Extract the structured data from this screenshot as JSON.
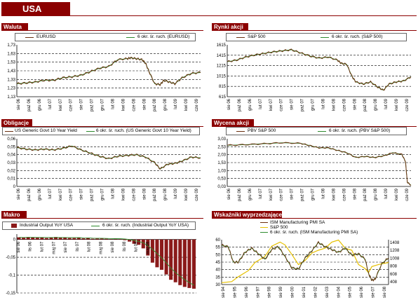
{
  "page": {
    "title": "USA"
  },
  "chart_data": [
    {
      "id": "eur",
      "panel_title": "Waluta",
      "type": "line",
      "series": [
        {
          "name": "EURUSD",
          "color": "#6b3010"
        },
        {
          "name": "6 okr. śr. ruch. (EURUSD)",
          "color": "#2e8b2e"
        }
      ],
      "y_ticks": [
        "1,73",
        "1,63",
        "1,53",
        "1,43",
        "1,33",
        "1,23",
        "1,13"
      ],
      "ylim": [
        1.13,
        1.73
      ],
      "x_ticks": [
        "sie 06",
        "paź 06",
        "gru 06",
        "lut 07",
        "kwi 07",
        "cze 07",
        "sie 07",
        "paź 07",
        "gru 07",
        "lut 08",
        "kwi 08",
        "cze 08",
        "sie 08",
        "paź 08",
        "gru 08",
        "lut 09",
        "kwi 09",
        "cze 09"
      ],
      "points": [
        [
          0,
          1.28
        ],
        [
          0.05,
          1.29
        ],
        [
          0.1,
          1.3
        ],
        [
          0.15,
          1.32
        ],
        [
          0.2,
          1.32
        ],
        [
          0.25,
          1.35
        ],
        [
          0.3,
          1.36
        ],
        [
          0.35,
          1.38
        ],
        [
          0.4,
          1.42
        ],
        [
          0.45,
          1.46
        ],
        [
          0.5,
          1.48
        ],
        [
          0.55,
          1.56
        ],
        [
          0.6,
          1.57
        ],
        [
          0.62,
          1.58
        ],
        [
          0.65,
          1.57
        ],
        [
          0.68,
          1.56
        ],
        [
          0.7,
          1.52
        ],
        [
          0.72,
          1.42
        ],
        [
          0.75,
          1.28
        ],
        [
          0.78,
          1.27
        ],
        [
          0.8,
          1.32
        ],
        [
          0.83,
          1.3
        ],
        [
          0.86,
          1.28
        ],
        [
          0.9,
          1.35
        ],
        [
          0.95,
          1.4
        ],
        [
          1,
          1.41
        ]
      ]
    },
    {
      "id": "sp",
      "panel_title": "Rynki akcji",
      "type": "line",
      "series": [
        {
          "name": "S&P 500",
          "color": "#6b3010"
        },
        {
          "name": "6 okr. śr. ruch. (S&P 500)",
          "color": "#2e8b2e"
        }
      ],
      "y_ticks": [
        "1615",
        "1415",
        "1215",
        "1015",
        "815",
        "615"
      ],
      "ylim": [
        615,
        1615
      ],
      "x_ticks": [
        "sie 06",
        "paź 06",
        "gru 06",
        "lut 07",
        "kwi 07",
        "cze 07",
        "sie 07",
        "paź 07",
        "gru 07",
        "lut 08",
        "kwi 08",
        "cze 08",
        "sie 08",
        "paź 08",
        "gru 08",
        "lut 09",
        "kwi 09",
        "cze 09"
      ],
      "points": [
        [
          0,
          1290
        ],
        [
          0.05,
          1320
        ],
        [
          0.1,
          1380
        ],
        [
          0.15,
          1420
        ],
        [
          0.2,
          1450
        ],
        [
          0.25,
          1480
        ],
        [
          0.3,
          1500
        ],
        [
          0.35,
          1520
        ],
        [
          0.4,
          1460
        ],
        [
          0.45,
          1400
        ],
        [
          0.5,
          1360
        ],
        [
          0.55,
          1380
        ],
        [
          0.6,
          1320
        ],
        [
          0.62,
          1260
        ],
        [
          0.65,
          1240
        ],
        [
          0.68,
          1000
        ],
        [
          0.7,
          900
        ],
        [
          0.74,
          860
        ],
        [
          0.78,
          900
        ],
        [
          0.82,
          800
        ],
        [
          0.85,
          740
        ],
        [
          0.88,
          860
        ],
        [
          0.92,
          900
        ],
        [
          0.96,
          920
        ],
        [
          1,
          1000
        ]
      ]
    },
    {
      "id": "bond",
      "panel_title": "Obligacje",
      "type": "line",
      "series": [
        {
          "name": "US Generic Govt 10 Year Yield",
          "color": "#6b3010"
        },
        {
          "name": "6 okr. śr. ruch. (US Generic Govt 10 Year Yield)",
          "color": "#2e8b2e"
        }
      ],
      "y_ticks": [
        "0,06",
        "0,05",
        "0,04",
        "0,03",
        "0,02",
        "0,01",
        "0"
      ],
      "ylim": [
        0,
        0.06
      ],
      "x_ticks": [
        "sie 06",
        "paź 06",
        "gru 06",
        "lut 07",
        "kwi 07",
        "cze 07",
        "sie 07",
        "paź 07",
        "gru 07",
        "lut 08",
        "kwi 08",
        "cze 08",
        "sie 08",
        "paź 08",
        "gru 08",
        "lut 09",
        "kwi 09",
        "cze 09"
      ],
      "points": [
        [
          0,
          0.049
        ],
        [
          0.05,
          0.047
        ],
        [
          0.1,
          0.046
        ],
        [
          0.15,
          0.047
        ],
        [
          0.2,
          0.046
        ],
        [
          0.25,
          0.048
        ],
        [
          0.3,
          0.051
        ],
        [
          0.35,
          0.046
        ],
        [
          0.4,
          0.042
        ],
        [
          0.45,
          0.038
        ],
        [
          0.5,
          0.035
        ],
        [
          0.55,
          0.038
        ],
        [
          0.6,
          0.039
        ],
        [
          0.65,
          0.04
        ],
        [
          0.7,
          0.037
        ],
        [
          0.75,
          0.03
        ],
        [
          0.78,
          0.022
        ],
        [
          0.82,
          0.028
        ],
        [
          0.86,
          0.029
        ],
        [
          0.9,
          0.032
        ],
        [
          0.95,
          0.037
        ],
        [
          1,
          0.036
        ]
      ]
    },
    {
      "id": "pbv",
      "panel_title": "Wycena akcji",
      "type": "line",
      "series": [
        {
          "name": "PBV S&P 500",
          "color": "#6b3010"
        },
        {
          "name": "6 okr. śr. ruch. (PBV S&P 500)",
          "color": "#2e8b2e"
        }
      ],
      "y_ticks": [
        "3,03",
        "2,53",
        "2,03",
        "1,53",
        "1,03",
        "0,53",
        "0,03"
      ],
      "ylim": [
        0.03,
        3.03
      ],
      "x_ticks": [
        "sie 06",
        "paź 06",
        "gru 06",
        "lut 07",
        "kwi 07",
        "cze 07",
        "sie 07",
        "paź 07",
        "gru 07",
        "lut 08",
        "kwi 08",
        "cze 08",
        "sie 08",
        "paź 08",
        "gru 08",
        "lut 09",
        "kwi 09",
        "cze 09"
      ],
      "points": [
        [
          0,
          2.62
        ],
        [
          0.1,
          2.66
        ],
        [
          0.2,
          2.72
        ],
        [
          0.3,
          2.78
        ],
        [
          0.4,
          2.74
        ],
        [
          0.45,
          2.6
        ],
        [
          0.5,
          2.46
        ],
        [
          0.55,
          2.46
        ],
        [
          0.6,
          2.3
        ],
        [
          0.65,
          2.15
        ],
        [
          0.7,
          1.85
        ],
        [
          0.75,
          1.92
        ],
        [
          0.8,
          1.85
        ],
        [
          0.85,
          1.95
        ],
        [
          0.9,
          2.15
        ],
        [
          0.95,
          2.05
        ],
        [
          0.97,
          1.6
        ],
        [
          0.98,
          0.3
        ],
        [
          1,
          0.1
        ]
      ]
    },
    {
      "id": "macro",
      "panel_title": "Makro",
      "type": "bar",
      "series": [
        {
          "name": "Industrial Output YoY USA",
          "color": "#8b1a1a"
        },
        {
          "name": "6 okr. śr. ruch. (Industrial Output YoY USA)",
          "color": "#2e8b2e"
        }
      ],
      "y_ticks": [
        "0",
        "-0,05",
        "-0,1",
        "-0,15"
      ],
      "ylim": [
        -0.15,
        0.015
      ],
      "x_ticks": [
        "sie 06",
        "lis 06",
        "lut 07",
        "maj 07",
        "sie 07",
        "lis 07",
        "lut 08",
        "maj 08",
        "sie 08",
        "lis 08",
        "lut 09",
        "maj 09"
      ],
      "values": [
        0.006,
        0.005,
        0.007,
        0.006,
        0.005,
        0.006,
        0.004,
        0.006,
        0.007,
        0.005,
        0.006,
        0.004,
        0.004,
        0.005,
        0.003,
        0.004,
        0.002,
        0.003,
        0.003,
        0.002,
        0.001,
        0.002,
        0.001,
        -0.002,
        -0.006,
        -0.012,
        -0.015,
        -0.025,
        -0.045,
        -0.065,
        -0.078,
        -0.085,
        -0.098,
        -0.113,
        -0.12,
        -0.128,
        -0.133,
        -0.136,
        -0.138
      ]
    },
    {
      "id": "lead",
      "panel_title": "Wskaźniki wyprzedzające",
      "type": "line",
      "series": [
        {
          "name": "ISM Manufacturing PMI SA",
          "color": "#6b3010"
        },
        {
          "name": "S&P 500",
          "color": "#e6c000"
        },
        {
          "name": "6 okr. śr. ruch. (ISM Manufacturing PMI SA)",
          "color": "#2e8b2e"
        }
      ],
      "y_ticks": [
        "60",
        "55",
        "50",
        "45",
        "40",
        "35",
        "30"
      ],
      "y2_ticks": [
        "1408",
        "1208",
        "1008",
        "808",
        "608",
        "408"
      ],
      "ylim": [
        30,
        62
      ],
      "y2lim": [
        408,
        1508
      ],
      "x_ticks": [
        "sie 94",
        "sie 95",
        "sie 96",
        "sie 97",
        "sie 98",
        "sie 99",
        "sie 00",
        "sie 01",
        "sie 02",
        "sie 03",
        "sie 04",
        "sie 05",
        "sie 06",
        "sie 07",
        "sie 08"
      ],
      "pmi": [
        [
          0,
          58
        ],
        [
          0.04,
          57
        ],
        [
          0.07,
          46
        ],
        [
          0.1,
          46
        ],
        [
          0.14,
          53
        ],
        [
          0.18,
          56
        ],
        [
          0.22,
          52
        ],
        [
          0.26,
          48
        ],
        [
          0.3,
          55
        ],
        [
          0.34,
          57
        ],
        [
          0.38,
          50
        ],
        [
          0.42,
          42
        ],
        [
          0.46,
          41
        ],
        [
          0.5,
          49
        ],
        [
          0.54,
          54
        ],
        [
          0.58,
          60
        ],
        [
          0.62,
          57
        ],
        [
          0.66,
          55
        ],
        [
          0.7,
          53
        ],
        [
          0.74,
          56
        ],
        [
          0.78,
          51
        ],
        [
          0.82,
          52
        ],
        [
          0.86,
          48
        ],
        [
          0.88,
          38
        ],
        [
          0.9,
          33
        ],
        [
          0.92,
          34
        ],
        [
          0.96,
          45
        ],
        [
          1,
          49
        ]
      ],
      "sp": [
        [
          0,
          455
        ],
        [
          0.06,
          480
        ],
        [
          0.1,
          600
        ],
        [
          0.16,
          750
        ],
        [
          0.2,
          950
        ],
        [
          0.26,
          1100
        ],
        [
          0.3,
          1350
        ],
        [
          0.35,
          1450
        ],
        [
          0.38,
          1380
        ],
        [
          0.42,
          1150
        ],
        [
          0.46,
          900
        ],
        [
          0.5,
          1000
        ],
        [
          0.54,
          1180
        ],
        [
          0.58,
          1250
        ],
        [
          0.62,
          1300
        ],
        [
          0.66,
          1450
        ],
        [
          0.7,
          1500
        ],
        [
          0.74,
          1300
        ],
        [
          0.78,
          1250
        ],
        [
          0.82,
          900
        ],
        [
          0.86,
          800
        ],
        [
          0.88,
          700
        ],
        [
          0.9,
          850
        ],
        [
          0.94,
          900
        ],
        [
          1,
          950
        ]
      ]
    }
  ]
}
